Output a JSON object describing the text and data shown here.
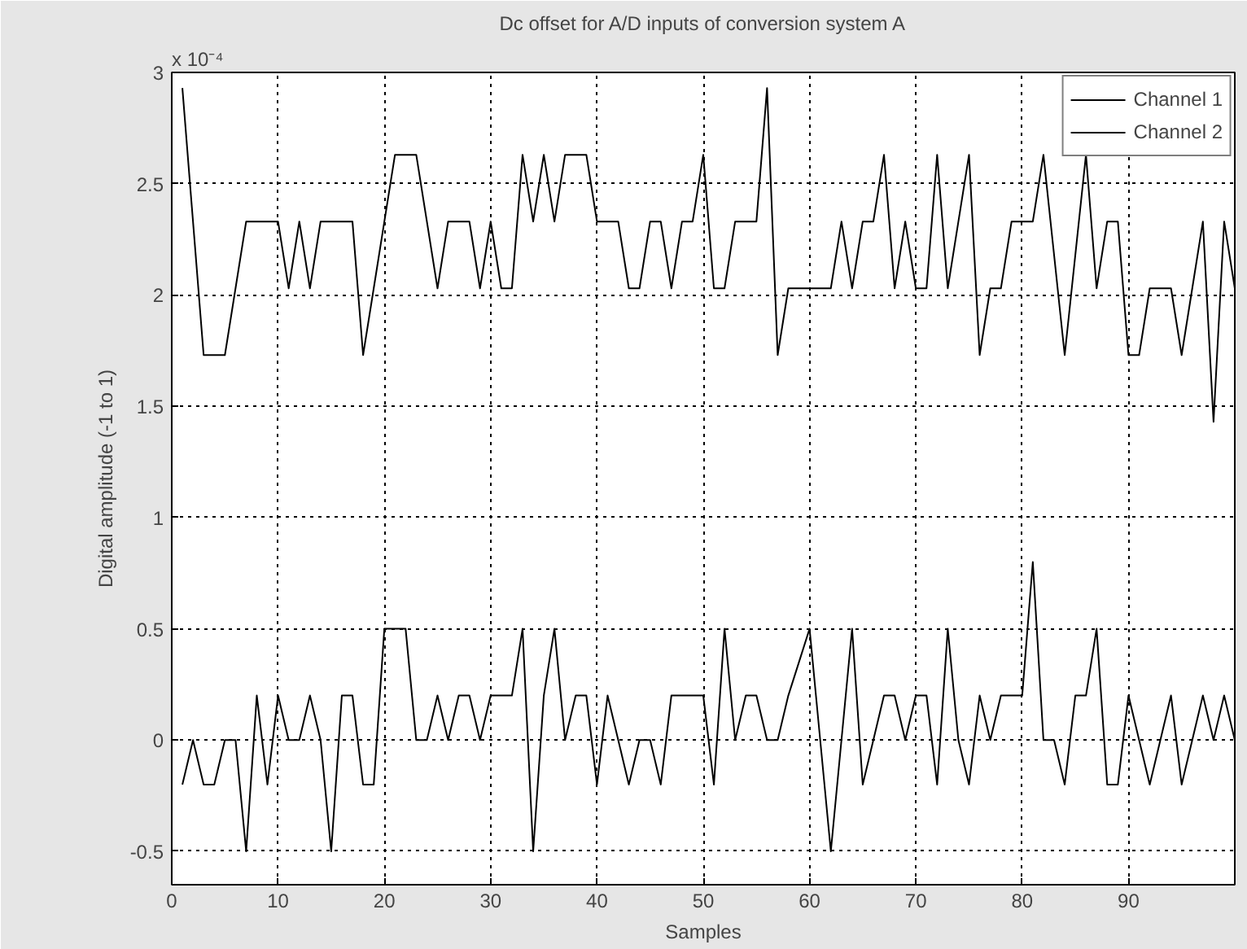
{
  "chart_data": {
    "type": "line",
    "title": "Dc offset for A/D inputs of conversion system A",
    "xlabel": "Samples",
    "ylabel": "Digital amplitude (-1 to 1)",
    "annotations": [
      "x 10⁻⁴"
    ],
    "x": [
      1,
      2,
      3,
      4,
      5,
      6,
      7,
      8,
      9,
      10,
      11,
      12,
      13,
      14,
      15,
      16,
      17,
      18,
      19,
      20,
      21,
      22,
      23,
      24,
      25,
      26,
      27,
      28,
      29,
      30,
      31,
      32,
      33,
      34,
      35,
      36,
      37,
      38,
      39,
      40,
      41,
      42,
      43,
      44,
      45,
      46,
      47,
      48,
      49,
      50,
      51,
      52,
      53,
      54,
      55,
      56,
      57,
      58,
      59,
      60,
      61,
      62,
      63,
      64,
      65,
      66,
      67,
      68,
      69,
      70,
      71,
      72,
      73,
      74,
      75,
      76,
      77,
      78,
      79,
      80,
      81,
      82,
      83,
      84,
      85,
      86,
      87,
      88,
      89,
      90,
      91,
      92,
      93,
      94,
      95,
      96,
      97,
      98,
      99,
      100
    ],
    "series": [
      {
        "name": "Channel 1",
        "color": "#000000",
        "values": [
          2.93,
          2.33,
          1.73,
          1.73,
          1.73,
          2.03,
          2.33,
          2.33,
          2.33,
          2.33,
          2.03,
          2.33,
          2.03,
          2.33,
          2.33,
          2.33,
          2.33,
          1.73,
          2.03,
          2.33,
          2.63,
          2.63,
          2.63,
          2.33,
          2.03,
          2.33,
          2.33,
          2.33,
          2.03,
          2.33,
          2.03,
          2.03,
          2.63,
          2.33,
          2.63,
          2.33,
          2.63,
          2.63,
          2.63,
          2.33,
          2.33,
          2.33,
          2.03,
          2.03,
          2.33,
          2.33,
          2.03,
          2.33,
          2.33,
          2.63,
          2.03,
          2.03,
          2.33,
          2.33,
          2.33,
          2.93,
          1.73,
          2.03,
          2.03,
          2.03,
          2.03,
          2.03,
          2.33,
          2.03,
          2.33,
          2.33,
          2.63,
          2.03,
          2.33,
          2.03,
          2.03,
          2.63,
          2.03,
          2.33,
          2.63,
          1.73,
          2.03,
          2.03,
          2.33,
          2.33,
          2.33,
          2.63,
          2.18,
          1.73,
          2.18,
          2.63,
          2.03,
          2.33,
          2.33,
          1.73,
          1.73,
          2.03,
          2.03,
          2.03,
          1.73,
          2.03,
          2.33,
          1.43,
          2.33,
          2.03
        ]
      },
      {
        "name": "Channel 2",
        "color": "#000000",
        "values": [
          -0.2,
          0,
          -0.2,
          -0.2,
          0,
          0,
          -0.5,
          0.2,
          -0.2,
          0.2,
          0,
          0,
          0.2,
          0,
          -0.5,
          0.2,
          0.2,
          -0.2,
          -0.2,
          0.5,
          0.5,
          0.5,
          0,
          0,
          0.2,
          0,
          0.2,
          0.2,
          0,
          0.2,
          0.2,
          0.2,
          0.5,
          -0.5,
          0.2,
          0.5,
          0,
          0.2,
          0.2,
          -0.2,
          0.2,
          0,
          -0.2,
          0,
          0,
          -0.2,
          0.2,
          0.2,
          0.2,
          0.2,
          -0.2,
          0.5,
          0,
          0.2,
          0.2,
          0,
          0,
          0.2,
          0.35,
          0.5,
          0,
          -0.5,
          0,
          0.5,
          -0.2,
          0,
          0.2,
          0.2,
          0,
          0.2,
          0.2,
          -0.2,
          0.5,
          0,
          -0.2,
          0.2,
          0,
          0.2,
          0.2,
          0.2,
          0.8,
          0,
          0,
          -0.2,
          0.2,
          0.2,
          0.5,
          -0.2,
          -0.2,
          0.2,
          0,
          -0.2,
          0,
          0.2,
          -0.2,
          0,
          0.2,
          0,
          0.2,
          0
        ]
      }
    ],
    "xlim": [
      0,
      100
    ],
    "xticks": [
      0,
      10,
      20,
      30,
      40,
      50,
      60,
      70,
      80,
      90
    ],
    "ylim": [
      -0.65,
      3
    ],
    "yticks": [
      -0.5,
      0,
      0.5,
      1,
      1.5,
      2,
      2.5,
      3
    ],
    "grid": true,
    "legend": "top right",
    "line_style": "solid",
    "marker": "none"
  }
}
